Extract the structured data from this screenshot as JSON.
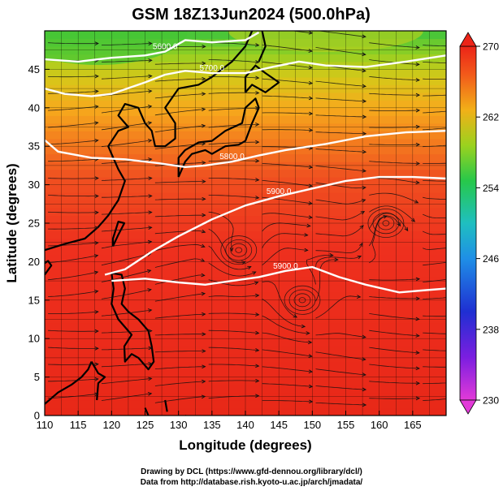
{
  "chart_data": {
    "type": "heatmap",
    "title": "GSM 18Z13Jun2024 (500.0hPa)",
    "xlabel": "Longitude (degrees)",
    "ylabel": "Latitude  (degrees)",
    "xlim": [
      110,
      170
    ],
    "ylim": [
      0,
      50
    ],
    "x_ticks": [
      110,
      115,
      120,
      125,
      130,
      135,
      140,
      145,
      150,
      155,
      160,
      165
    ],
    "y_ticks": [
      0,
      5,
      10,
      15,
      20,
      25,
      30,
      35,
      40,
      45
    ],
    "grid": true,
    "colorbar": {
      "position": "right",
      "min": 230,
      "max": 270,
      "tick_labels": [
        230,
        238,
        246,
        254,
        262,
        270
      ]
    },
    "contours": [
      {
        "label": "5600.0",
        "points": [
          [
            110,
            46.3
          ],
          [
            115,
            46.0
          ],
          [
            120,
            46.5
          ],
          [
            125,
            46.8
          ],
          [
            128,
            47.3
          ],
          [
            131,
            48.8
          ],
          [
            135,
            48.5
          ],
          [
            140,
            48.8
          ],
          [
            142,
            49.8
          ]
        ]
      },
      {
        "label": "5700.0",
        "points": [
          [
            110,
            42.5
          ],
          [
            113,
            41.8
          ],
          [
            117,
            41.5
          ],
          [
            120,
            41.8
          ],
          [
            125,
            43.3
          ],
          [
            128,
            44.3
          ],
          [
            131,
            44.8
          ],
          [
            135,
            44.5
          ],
          [
            140,
            44.5
          ],
          [
            144,
            45.3
          ],
          [
            148,
            46.0
          ],
          [
            152,
            45.5
          ],
          [
            158,
            45.3
          ],
          [
            164,
            46.0
          ],
          [
            170,
            46.8
          ]
        ]
      },
      {
        "label": "5800.0",
        "points": [
          [
            110,
            35.8
          ],
          [
            112,
            34.3
          ],
          [
            117,
            33.5
          ],
          [
            122,
            33.3
          ],
          [
            127,
            32.8
          ],
          [
            131,
            32.3
          ],
          [
            134,
            32.5
          ],
          [
            138,
            33.0
          ],
          [
            142,
            33.8
          ],
          [
            146,
            34.5
          ],
          [
            152,
            35.3
          ],
          [
            158,
            36.3
          ],
          [
            164,
            36.8
          ],
          [
            170,
            37.0
          ]
        ]
      },
      {
        "label": "5900.0",
        "points": [
          [
            119,
            18.3
          ],
          [
            122,
            19.0
          ],
          [
            126,
            21.3
          ],
          [
            130,
            23.3
          ],
          [
            135,
            25.5
          ],
          [
            140,
            27.3
          ],
          [
            145,
            28.5
          ],
          [
            150,
            29.5
          ],
          [
            155,
            30.5
          ],
          [
            160,
            31.0
          ],
          [
            165,
            31.0
          ],
          [
            170,
            30.8
          ]
        ]
      },
      {
        "label": "5900.0",
        "points": [
          [
            120,
            17.5
          ],
          [
            125,
            17.8
          ],
          [
            130,
            17.3
          ],
          [
            134,
            17.0
          ],
          [
            138,
            17.5
          ],
          [
            142,
            18.0
          ],
          [
            146,
            18.8
          ],
          [
            150,
            19.3
          ],
          [
            154,
            18.0
          ],
          [
            158,
            17.0
          ],
          [
            163,
            16.0
          ],
          [
            167,
            16.3
          ],
          [
            170,
            16.5
          ]
        ]
      }
    ],
    "circulation_centers": [
      {
        "lon": 148.5,
        "lat": 15.0,
        "kind": "cyclonic"
      },
      {
        "lon": 161.0,
        "lat": 25.0,
        "kind": "anticyclonic"
      },
      {
        "lon": 139.0,
        "lat": 21.5,
        "kind": "cyclonic"
      }
    ]
  },
  "credits": {
    "line1": "Drawing by DCL (https://www.gfd-dennou.org/library/dcl/)",
    "line2": "Data from http://database.rish.kyoto-u.ac.jp/arch/jmadata/"
  }
}
